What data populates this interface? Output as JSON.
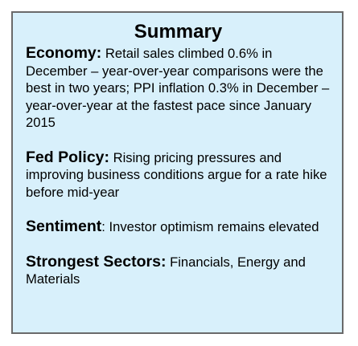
{
  "summary": {
    "title": "Summary",
    "sections": [
      {
        "heading": "Economy:",
        "text": " Retail sales climbed 0.6% in December – year-over-year comparisons were the best in two years; PPI inflation 0.3% in December – year-over-year at the fastest pace since January 2015"
      },
      {
        "heading": "Fed Policy:",
        "text": " Rising pricing pressures and improving business conditions argue for a rate hike before mid-year"
      },
      {
        "heading": "Sentiment",
        "text": ": Investor optimism remains elevated"
      },
      {
        "heading": "Strongest Sectors:",
        "text": " Financials, Energy and Materials"
      }
    ]
  },
  "colors": {
    "background": "#d8f0fb",
    "border": "#6a6a6a",
    "text": "#000000"
  }
}
